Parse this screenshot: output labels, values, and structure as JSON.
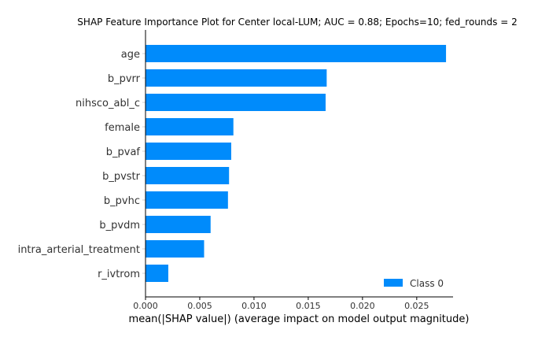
{
  "chart_data": {
    "type": "bar",
    "orientation": "horizontal",
    "title": "SHAP Feature Importance Plot for Center local-LUM; AUC = 0.88; Epochs=10; fed_rounds = 2",
    "xlabel": "mean(|SHAP value|) (average impact on model output magnitude)",
    "ylabel": "",
    "categories": [
      "age",
      "b_pvrr",
      "nihsco_abl_c",
      "female",
      "b_pvaf",
      "b_pvstr",
      "b_pvhc",
      "b_pvdm",
      "intra_arterial_treatment",
      "r_ivtrom"
    ],
    "series": [
      {
        "name": "Class 0",
        "color": "#008bfb",
        "values": [
          0.0277,
          0.0167,
          0.0166,
          0.0081,
          0.0079,
          0.0077,
          0.0076,
          0.006,
          0.0054,
          0.0021
        ]
      }
    ],
    "xlim": [
      0,
      0.029
    ],
    "xticks": [
      0.0,
      0.005,
      0.01,
      0.015,
      0.02,
      0.025
    ],
    "xtick_labels": [
      "0.000",
      "0.005",
      "0.010",
      "0.015",
      "0.020",
      "0.025"
    ],
    "grid": false,
    "legend": {
      "position": "bottom-right",
      "entries": [
        "Class 0"
      ]
    }
  }
}
